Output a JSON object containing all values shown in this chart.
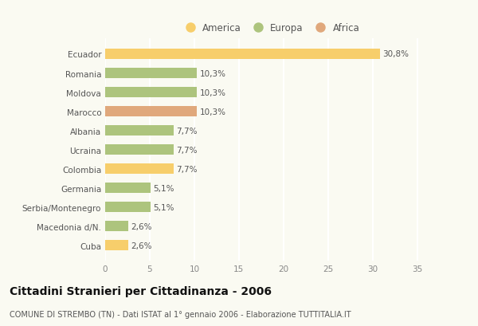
{
  "categories": [
    "Cuba",
    "Macedonia d/N.",
    "Serbia/Montenegro",
    "Germania",
    "Colombia",
    "Ucraina",
    "Albania",
    "Marocco",
    "Moldova",
    "Romania",
    "Ecuador"
  ],
  "values": [
    2.6,
    2.6,
    5.1,
    5.1,
    7.7,
    7.7,
    7.7,
    10.3,
    10.3,
    10.3,
    30.8
  ],
  "labels": [
    "2,6%",
    "2,6%",
    "5,1%",
    "5,1%",
    "7,7%",
    "7,7%",
    "7,7%",
    "10,3%",
    "10,3%",
    "10,3%",
    "30,8%"
  ],
  "colors": [
    "#f7ce6b",
    "#adc47d",
    "#adc47d",
    "#adc47d",
    "#f7ce6b",
    "#adc47d",
    "#adc47d",
    "#e0a87c",
    "#adc47d",
    "#adc47d",
    "#f7ce6b"
  ],
  "legend_items": [
    {
      "label": "America",
      "color": "#f7ce6b"
    },
    {
      "label": "Europa",
      "color": "#adc47d"
    },
    {
      "label": "Africa",
      "color": "#e0a87c"
    }
  ],
  "xlim": [
    0,
    37
  ],
  "xticks": [
    0,
    5,
    10,
    15,
    20,
    25,
    30,
    35
  ],
  "title": "Cittadini Stranieri per Cittadinanza - 2006",
  "subtitle": "COMUNE DI STREMBO (TN) - Dati ISTAT al 1° gennaio 2006 - Elaborazione TUTTITALIA.IT",
  "background_color": "#fafaf2",
  "grid_color": "#ffffff",
  "bar_height": 0.55,
  "label_fontsize": 7.5,
  "tick_fontsize": 7.5,
  "ytick_fontsize": 7.5,
  "title_fontsize": 10,
  "subtitle_fontsize": 7,
  "legend_fontsize": 8.5
}
